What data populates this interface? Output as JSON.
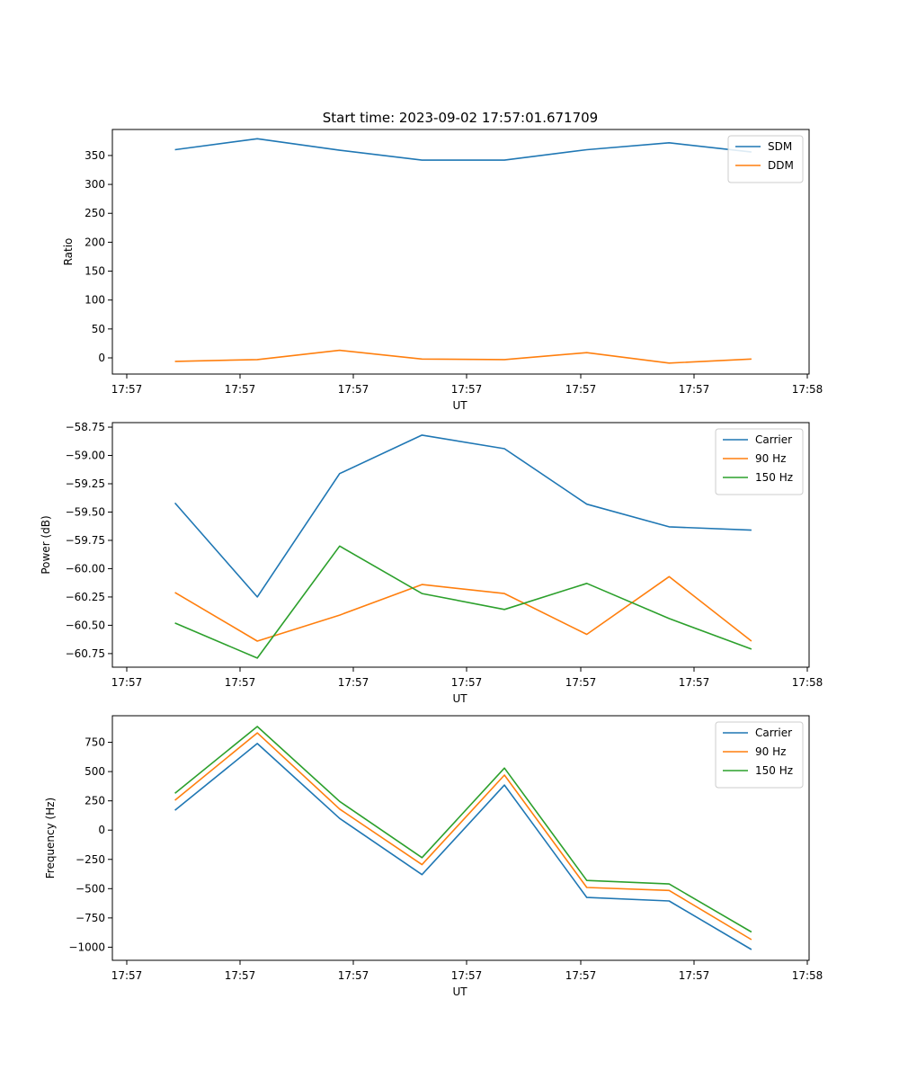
{
  "title": "Start time: 2023-09-02 17:57:01.671709",
  "chart_data": [
    {
      "type": "line",
      "xlabel": "UT",
      "ylabel": "Ratio",
      "x_ticks": [
        "17:57",
        "17:57",
        "17:57",
        "17:57",
        "17:57",
        "17:57",
        "17:58"
      ],
      "y_ticks": [
        0,
        50,
        100,
        150,
        200,
        250,
        300,
        350
      ],
      "ylim": [
        -28,
        395
      ],
      "x": [
        1,
        2,
        3,
        4,
        5,
        6,
        7,
        8
      ],
      "xlim": [
        0.24,
        8.7
      ],
      "x_tick_positions": [
        0.43,
        1.96,
        3.49,
        5.02,
        6.55,
        8.08,
        9.61
      ],
      "legend_position": "top-right",
      "series": [
        {
          "name": "SDM",
          "color": "#1f77b4",
          "values": [
            360,
            379,
            359,
            342,
            342,
            360,
            372,
            356
          ]
        },
        {
          "name": "DDM",
          "color": "#ff7f0e",
          "values": [
            -6,
            -3,
            13,
            -2,
            -3,
            9,
            -9,
            -2
          ]
        }
      ]
    },
    {
      "type": "line",
      "xlabel": "UT",
      "ylabel": "Power (dB)",
      "x_ticks": [
        "17:57",
        "17:57",
        "17:57",
        "17:57",
        "17:57",
        "17:57",
        "17:58"
      ],
      "y_ticks": [
        -60.75,
        -60.5,
        -60.25,
        -60.0,
        -59.75,
        -59.5,
        -59.25,
        -59.0,
        -58.75
      ],
      "y_tick_labels": [
        "−60.75",
        "−60.50",
        "−60.25",
        "−60.00",
        "−59.75",
        "−59.50",
        "−59.25",
        "−59.00",
        "−58.75"
      ],
      "ylim": [
        -60.87,
        -58.71
      ],
      "x": [
        1,
        2,
        3,
        4,
        5,
        6,
        7,
        8
      ],
      "xlim": [
        0.24,
        8.7
      ],
      "legend_position": "top-right",
      "series": [
        {
          "name": "Carrier",
          "color": "#1f77b4",
          "values": [
            -59.42,
            -60.25,
            -59.16,
            -58.82,
            -58.94,
            -59.43,
            -59.63,
            -59.66
          ]
        },
        {
          "name": "90 Hz",
          "color": "#ff7f0e",
          "values": [
            -60.21,
            -60.64,
            -60.41,
            -60.14,
            -60.22,
            -60.58,
            -60.07,
            -60.64
          ]
        },
        {
          "name": "150 Hz",
          "color": "#2ca02c",
          "values": [
            -60.48,
            -60.79,
            -59.8,
            -60.22,
            -60.36,
            -60.13,
            -60.44,
            -60.71
          ]
        }
      ]
    },
    {
      "type": "line",
      "xlabel": "UT",
      "ylabel": "Frequency (Hz)",
      "x_ticks": [
        "17:57",
        "17:57",
        "17:57",
        "17:57",
        "17:57",
        "17:57",
        "17:58"
      ],
      "y_ticks": [
        -1000,
        -750,
        -500,
        -250,
        0,
        250,
        500,
        750
      ],
      "y_tick_labels": [
        "−1000",
        "−750",
        "−500",
        "−250",
        "0",
        "250",
        "500",
        "750"
      ],
      "ylim": [
        -1112,
        977
      ],
      "x": [
        1,
        2,
        3,
        4,
        5,
        6,
        7,
        8
      ],
      "xlim": [
        0.24,
        8.7
      ],
      "legend_position": "top-right",
      "series": [
        {
          "name": "Carrier",
          "color": "#1f77b4",
          "values": [
            170,
            740,
            100,
            -380,
            385,
            -575,
            -605,
            -1020
          ]
        },
        {
          "name": "90 Hz",
          "color": "#ff7f0e",
          "values": [
            255,
            830,
            180,
            -295,
            470,
            -490,
            -515,
            -935
          ]
        },
        {
          "name": "150 Hz",
          "color": "#2ca02c",
          "values": [
            315,
            885,
            245,
            -235,
            530,
            -430,
            -460,
            -870
          ]
        }
      ]
    }
  ]
}
